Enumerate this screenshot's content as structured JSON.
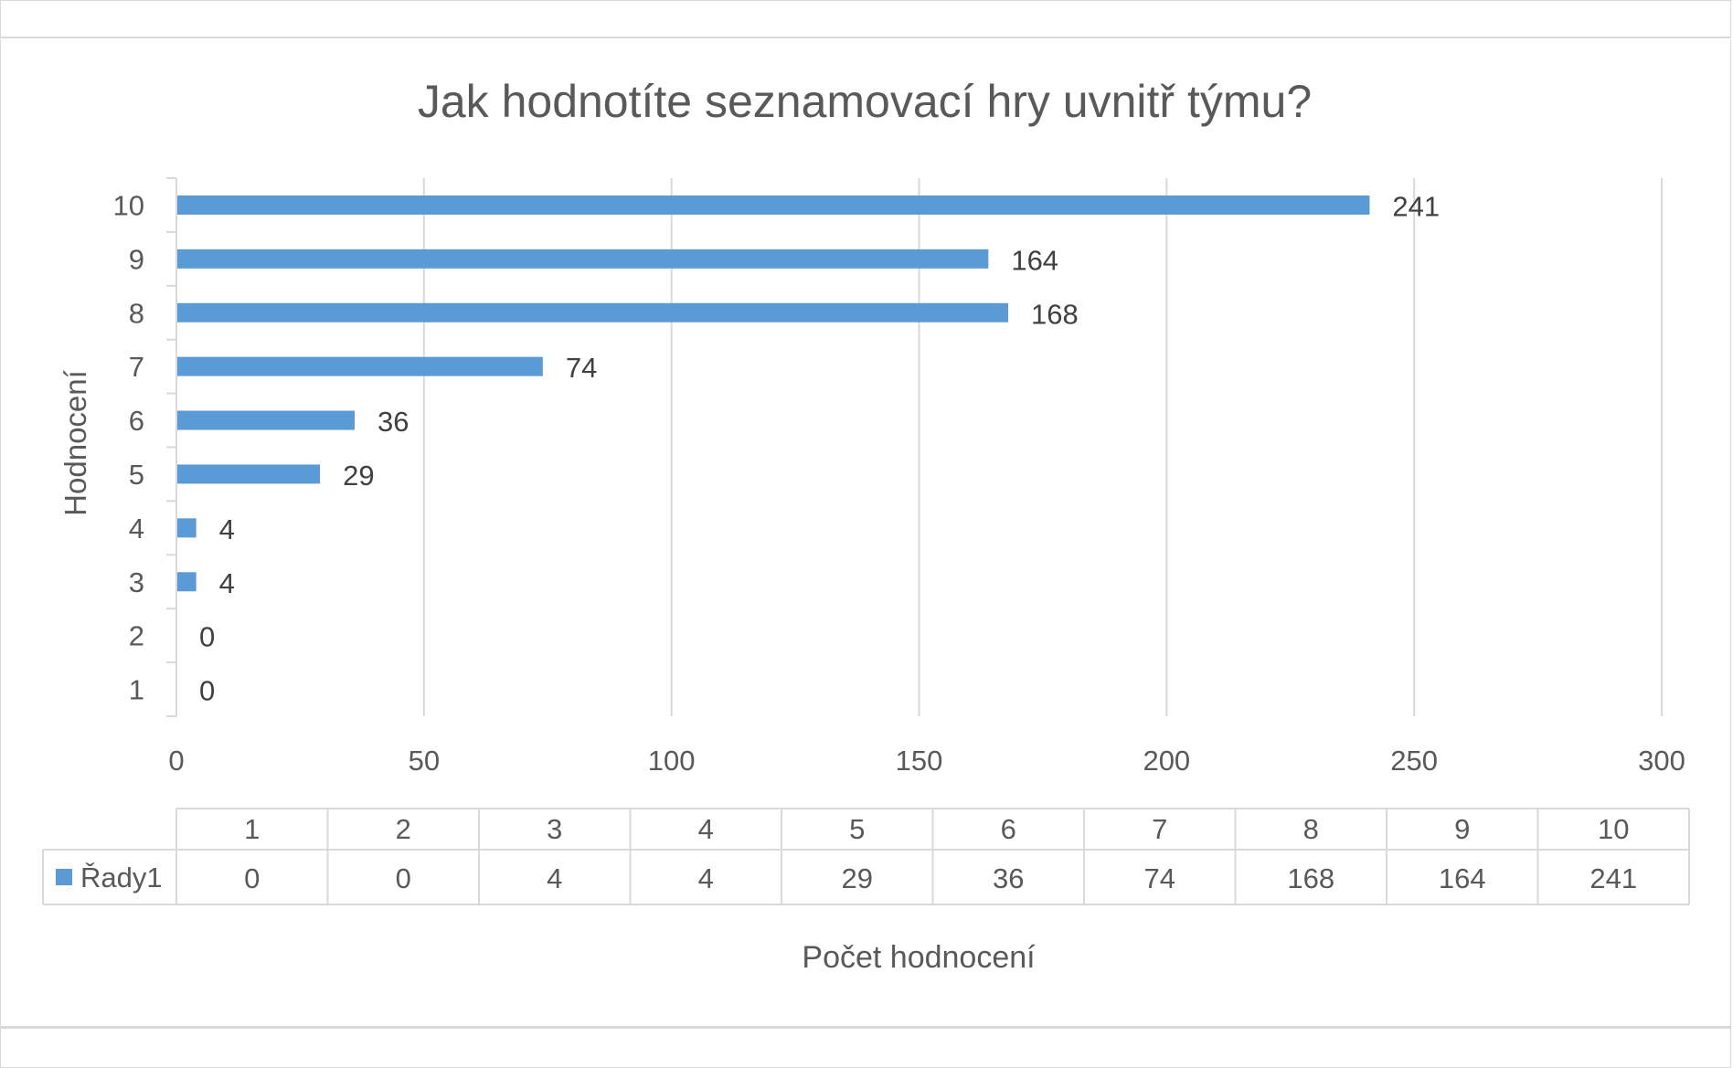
{
  "chart_data": {
    "type": "bar",
    "orientation": "horizontal",
    "title": "Jak hodnotíte seznamovací hry uvnitř týmu?",
    "xlabel": "Počet hodnocení",
    "ylabel": "Hodnocení",
    "categories": [
      "1",
      "2",
      "3",
      "4",
      "5",
      "6",
      "7",
      "8",
      "9",
      "10"
    ],
    "series": [
      {
        "name": "Řady1",
        "values": [
          0,
          0,
          4,
          4,
          29,
          36,
          74,
          168,
          164,
          241
        ],
        "color": "#5b9bd5"
      }
    ],
    "xlim": [
      0,
      300
    ],
    "xticks": [
      "0",
      "50",
      "100",
      "150",
      "200",
      "250",
      "300"
    ],
    "grid": "vertical",
    "data_labels": true,
    "data_table": true
  }
}
